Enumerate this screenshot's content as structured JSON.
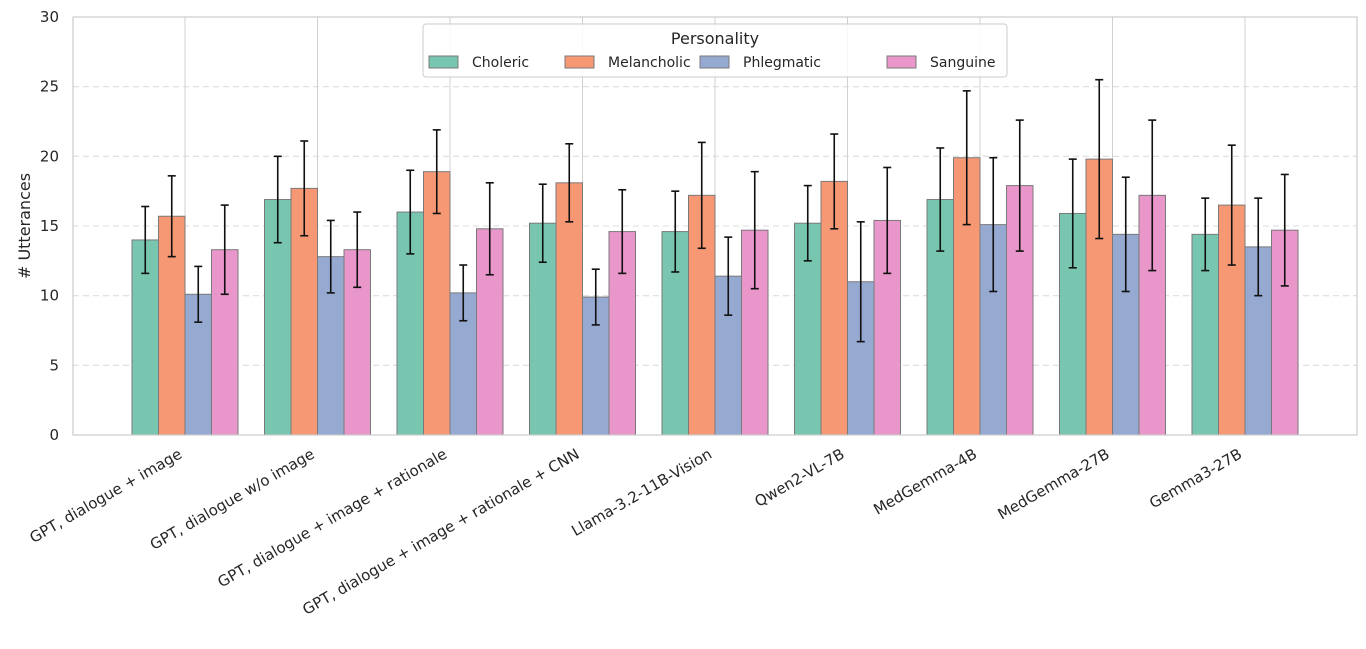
{
  "chart_data": {
    "type": "bar",
    "title": "",
    "xlabel": "",
    "ylabel": "# Utterances",
    "ylim": [
      0,
      30
    ],
    "yticks": [
      0,
      5,
      10,
      15,
      20,
      25,
      30
    ],
    "grid": "y-dashed",
    "legend": {
      "title": "Personality",
      "placement": "top-center"
    },
    "categories": [
      "GPT, dialogue + image",
      "GPT, dialogue w/o image",
      "GPT, dialogue + image + rationale",
      "GPT, dialogue + image + rationale + CNN",
      "Llama-3.2-11B-Vision",
      "Qwen2-VL-7B",
      "MedGemma-4B",
      "MedGemma-27B",
      "Gemma3-27B"
    ],
    "series": [
      {
        "name": "Choleric",
        "color": "#78c6b0",
        "values": [
          14.0,
          16.9,
          16.0,
          15.2,
          14.6,
          15.2,
          16.9,
          15.9,
          14.4
        ],
        "errors": [
          2.4,
          3.1,
          3.0,
          2.8,
          2.9,
          2.7,
          3.7,
          3.9,
          2.6
        ]
      },
      {
        "name": "Melancholic",
        "color": "#f79874",
        "values": [
          15.7,
          17.7,
          18.9,
          18.1,
          17.2,
          18.2,
          19.9,
          19.8,
          16.5
        ],
        "errors": [
          2.9,
          3.4,
          3.0,
          2.8,
          3.8,
          3.4,
          4.8,
          5.7,
          4.3
        ]
      },
      {
        "name": "Phlegmatic",
        "color": "#96a9d1",
        "values": [
          10.1,
          12.8,
          10.2,
          9.9,
          11.4,
          11.0,
          15.1,
          14.4,
          13.5
        ],
        "errors": [
          2.0,
          2.6,
          2.0,
          2.0,
          2.8,
          4.3,
          4.8,
          4.1,
          3.5
        ]
      },
      {
        "name": "Sanguine",
        "color": "#e996ca",
        "values": [
          13.3,
          13.3,
          14.8,
          14.6,
          14.7,
          15.4,
          17.9,
          17.2,
          14.7
        ],
        "errors": [
          3.2,
          2.7,
          3.3,
          3.0,
          4.2,
          3.8,
          4.7,
          5.4,
          4.0
        ]
      }
    ]
  }
}
